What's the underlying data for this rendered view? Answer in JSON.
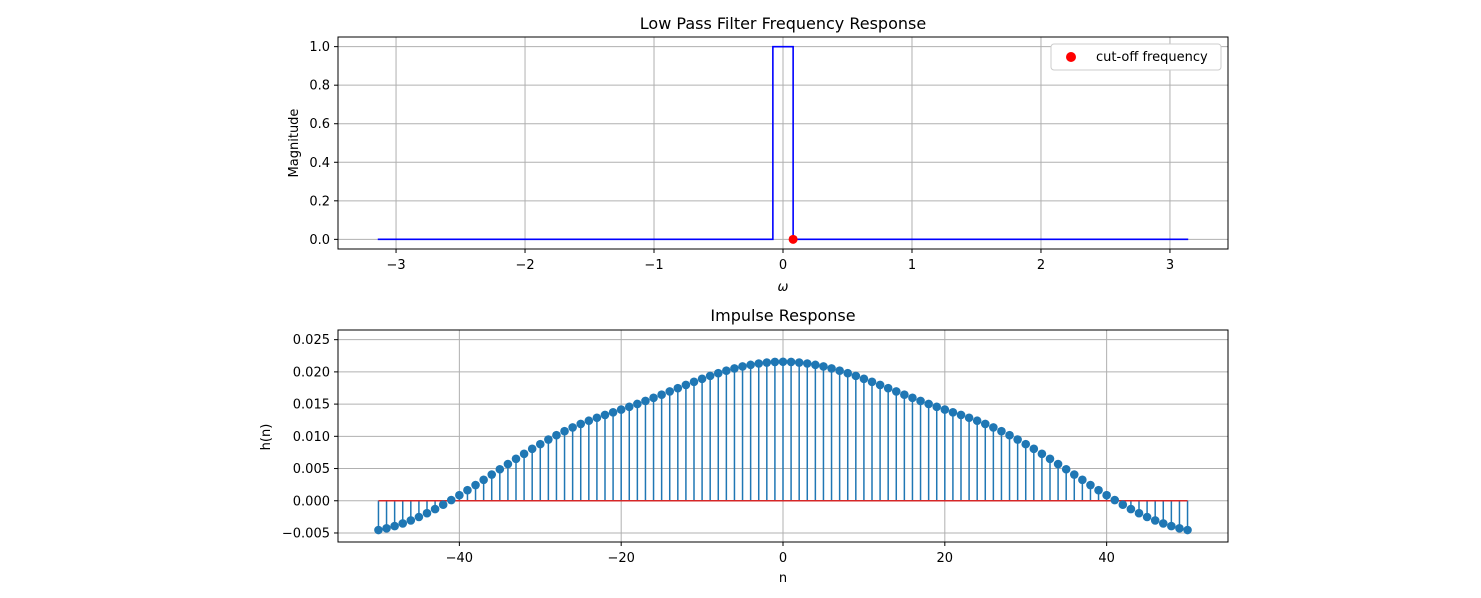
{
  "chart_data": [
    {
      "type": "line",
      "title": "Low Pass Filter Frequency Response",
      "xlabel": "ω",
      "ylabel": "Magnitude",
      "xlim": [
        -3.45,
        3.45
      ],
      "ylim": [
        -0.05,
        1.05
      ],
      "xticks": [
        -3,
        -2,
        -1,
        0,
        1,
        2,
        3
      ],
      "xtick_labels": [
        "−3",
        "−2",
        "−1",
        "0",
        "1",
        "2",
        "3"
      ],
      "yticks": [
        0.0,
        0.2,
        0.4,
        0.6,
        0.8,
        1.0
      ],
      "ytick_labels": [
        "0.0",
        "0.2",
        "0.4",
        "0.6",
        "0.8",
        "1.0"
      ],
      "grid": true,
      "legend_position": "top-right",
      "series": [
        {
          "kind": "line",
          "color": "#0000ff",
          "x": [
            -3.1416,
            -0.0785,
            -0.0785,
            0.0785,
            0.0785,
            3.1416
          ],
          "y": [
            0,
            0,
            1,
            1,
            0,
            0
          ]
        },
        {
          "kind": "scatter",
          "name": "cut-off frequency",
          "color": "#ff0000",
          "x": [
            0.0785
          ],
          "y": [
            0
          ]
        }
      ]
    },
    {
      "type": "stem",
      "title": "Impulse Response",
      "xlabel": "n",
      "ylabel": "h(n)",
      "xlim": [
        -55,
        55
      ],
      "ylim": [
        -0.0064,
        0.0265
      ],
      "xticks": [
        -40,
        -20,
        0,
        20,
        40
      ],
      "xtick_labels": [
        "−40",
        "−20",
        "0",
        "20",
        "40"
      ],
      "yticks": [
        -0.005,
        0.0,
        0.005,
        0.01,
        0.015,
        0.02,
        0.025
      ],
      "ytick_labels": [
        "−0.005",
        "0.000",
        "0.005",
        "0.010",
        "0.015",
        "0.020",
        "0.025"
      ],
      "grid": true,
      "n_start": -50,
      "n_end": 50,
      "cutoff": 0.0785,
      "stem_color": "#1f77b4",
      "baseline_color": "#d62728",
      "values": [
        -0.00454,
        -0.00427,
        -0.00393,
        -0.00352,
        -0.00305,
        -0.00252,
        -0.00193,
        -0.00129,
        -0.00061,
        0.00011,
        0.00086,
        0.00164,
        0.00244,
        0.00325,
        0.00407,
        0.00489,
        0.0057,
        0.00651,
        0.00729,
        0.00806,
        0.00879,
        0.0095,
        0.01017,
        0.0108,
        0.01138,
        0.01192,
        0.01242,
        0.01288,
        0.01332,
        0.01373,
        0.01415,
        0.01458,
        0.01502,
        0.01549,
        0.01597,
        0.01646,
        0.01697,
        0.01747,
        0.01797,
        0.01846,
        0.01893,
        0.01938,
        0.0198,
        0.02019,
        0.02054,
        0.02084,
        0.02109,
        0.0213,
        0.02145,
        0.02154,
        0.02157,
        0.02154,
        0.02145,
        0.0213,
        0.02109,
        0.02084,
        0.02054,
        0.02019,
        0.0198,
        0.01938,
        0.01893,
        0.01846,
        0.01797,
        0.01747,
        0.01697,
        0.01646,
        0.01597,
        0.01549,
        0.01502,
        0.01458,
        0.01415,
        0.01373,
        0.01332,
        0.01288,
        0.01242,
        0.01192,
        0.01138,
        0.0108,
        0.01017,
        0.0095,
        0.00879,
        0.00806,
        0.00729,
        0.00651,
        0.0057,
        0.00489,
        0.00407,
        0.00325,
        0.00244,
        0.00164,
        0.00086,
        0.00011,
        -0.00061,
        -0.00129,
        -0.00193,
        -0.00252,
        -0.00305,
        -0.00352,
        -0.00393,
        -0.00427,
        -0.00454
      ]
    }
  ]
}
